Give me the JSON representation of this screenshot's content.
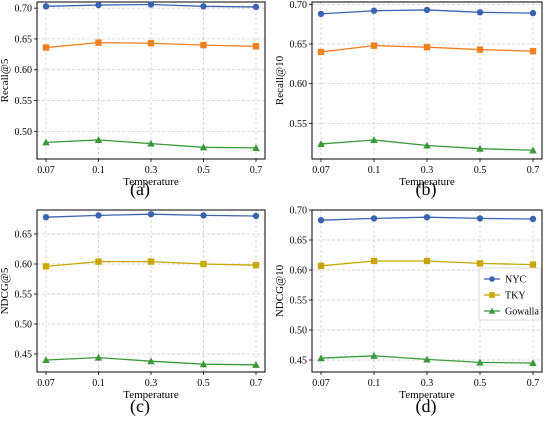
{
  "colors": {
    "NYC": "#3b64b0",
    "TKY": "#f08020",
    "TKY_c": "#c8a800",
    "Gowalla": "#3a9a3a",
    "grid": "#c8c8c8"
  },
  "legend": {
    "entries": [
      "NYC",
      "TKY",
      "Gowalla"
    ],
    "placement": "center-right of panel (d)"
  },
  "chart_data": [
    {
      "type": "line",
      "panel_label": "(a)",
      "xlabel": "Temperature",
      "ylabel": "Recall@5",
      "categories": [
        "0.07",
        "0.1",
        "0.3",
        "0.5",
        "0.7"
      ],
      "ylim": [
        0.455,
        0.71
      ],
      "yticks": [
        0.5,
        0.55,
        0.6,
        0.65,
        0.7
      ],
      "ytick_labels": [
        "0.50",
        "0.55",
        "0.60",
        "0.65",
        "0.70"
      ],
      "grid": true,
      "series": [
        {
          "name": "NYC",
          "marker": "circle",
          "values": [
            0.703,
            0.705,
            0.706,
            0.703,
            0.702
          ]
        },
        {
          "name": "TKY",
          "marker": "square",
          "values": [
            0.636,
            0.644,
            0.643,
            0.64,
            0.638
          ]
        },
        {
          "name": "Gowalla",
          "marker": "triangle",
          "values": [
            0.482,
            0.486,
            0.48,
            0.474,
            0.473
          ]
        }
      ]
    },
    {
      "type": "line",
      "panel_label": "(b)",
      "xlabel": "Temperature",
      "ylabel": "Recall@10",
      "categories": [
        "0.07",
        "0.1",
        "0.3",
        "0.5",
        "0.7"
      ],
      "ylim": [
        0.505,
        0.703
      ],
      "yticks": [
        0.55,
        0.6,
        0.65,
        0.7
      ],
      "ytick_labels": [
        "0.55",
        "0.60",
        "0.65",
        "0.70"
      ],
      "grid": true,
      "series": [
        {
          "name": "NYC",
          "marker": "circle",
          "values": [
            0.688,
            0.692,
            0.693,
            0.69,
            0.689
          ]
        },
        {
          "name": "TKY",
          "marker": "square",
          "values": [
            0.64,
            0.648,
            0.646,
            0.643,
            0.641
          ]
        },
        {
          "name": "Gowalla",
          "marker": "triangle",
          "values": [
            0.524,
            0.529,
            0.522,
            0.518,
            0.516
          ]
        }
      ]
    },
    {
      "type": "line",
      "panel_label": "(c)",
      "xlabel": "Temperature",
      "ylabel": "NDCG@5",
      "categories": [
        "0.07",
        "0.1",
        "0.3",
        "0.5",
        "0.7"
      ],
      "ylim": [
        0.42,
        0.69
      ],
      "yticks": [
        0.45,
        0.5,
        0.55,
        0.6,
        0.65
      ],
      "ytick_labels": [
        "0.45",
        "0.50",
        "0.55",
        "0.60",
        "0.65"
      ],
      "grid": true,
      "series": [
        {
          "name": "NYC",
          "marker": "circle",
          "values": [
            0.678,
            0.681,
            0.683,
            0.681,
            0.68
          ]
        },
        {
          "name": "TKY",
          "marker": "square",
          "color_key": "TKY_c",
          "values": [
            0.596,
            0.604,
            0.604,
            0.6,
            0.598
          ]
        },
        {
          "name": "Gowalla",
          "marker": "triangle",
          "values": [
            0.44,
            0.444,
            0.438,
            0.433,
            0.432
          ]
        }
      ]
    },
    {
      "type": "line",
      "panel_label": "(d)",
      "xlabel": "Temperature",
      "ylabel": "NDCG@10",
      "categories": [
        "0.07",
        "0.1",
        "0.3",
        "0.5",
        "0.7"
      ],
      "ylim": [
        0.43,
        0.7
      ],
      "yticks": [
        0.45,
        0.5,
        0.55,
        0.6,
        0.65,
        0.7
      ],
      "ytick_labels": [
        "0.45",
        "0.50",
        "0.55",
        "0.60",
        "0.65",
        "0.70"
      ],
      "grid": true,
      "series": [
        {
          "name": "NYC",
          "marker": "circle",
          "values": [
            0.683,
            0.686,
            0.688,
            0.686,
            0.685
          ]
        },
        {
          "name": "TKY",
          "marker": "square",
          "color_key": "TKY_c",
          "values": [
            0.607,
            0.615,
            0.615,
            0.611,
            0.609
          ]
        },
        {
          "name": "Gowalla",
          "marker": "triangle",
          "values": [
            0.453,
            0.457,
            0.451,
            0.446,
            0.445
          ]
        }
      ]
    }
  ]
}
